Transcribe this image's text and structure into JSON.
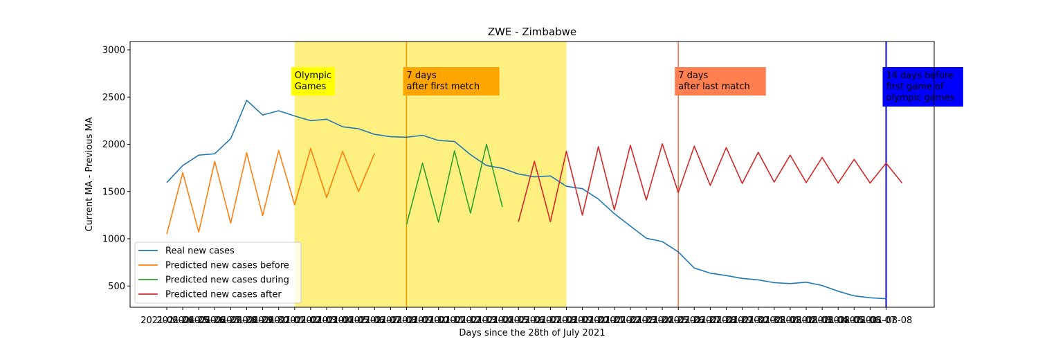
{
  "chart_data": {
    "type": "line",
    "title": "ZWE - Zimbabwe",
    "xlabel": "Days since the 28th of July 2021",
    "ylabel": "Current MA - Previous MA",
    "ylim": [
      270,
      3080
    ],
    "yticks": [
      500,
      1000,
      1500,
      2000,
      2500,
      3000
    ],
    "x_dates": [
      "2021-06-24",
      "2021-06-25",
      "2021-06-26",
      "2021-06-27",
      "2021-06-28",
      "2021-06-29",
      "2021-06-30",
      "2021-07-01",
      "2021-07-02",
      "2021-07-03",
      "2021-07-04",
      "2021-07-05",
      "2021-07-06",
      "2021-07-07",
      "2021-07-08",
      "2021-07-09",
      "2021-07-10",
      "2021-07-11",
      "2021-07-12",
      "2021-07-13",
      "2021-07-14",
      "2021-07-15",
      "2021-07-16",
      "2021-07-17",
      "2021-07-18",
      "2021-07-19",
      "2021-07-20",
      "2021-07-21",
      "2021-07-22",
      "2021-07-23",
      "2021-07-24",
      "2021-07-25",
      "2021-07-26",
      "2021-07-27",
      "2021-07-28",
      "2021-07-29",
      "2021-07-30",
      "2021-07-31",
      "2021-08-01",
      "2021-08-02",
      "2021-08-03",
      "2021-08-04",
      "2021-08-05",
      "2021-08-06",
      "2021-08-07",
      "2021-08-08"
    ],
    "x_tick_labels": [
      "2021-06-24",
      "2021-06-25",
      "2021-06-26",
      "2021-06-27",
      "2021-06-28",
      "2021-06-29",
      "2021-06-30",
      "2021-07-01",
      "2021-07-02",
      "2021-07-03",
      "2021-07-04",
      "2021-07-05",
      "2021-07-06",
      "2021-07-07",
      "2021-07-08",
      "2021-07-09",
      "2021-07-10",
      "2021-07-11",
      "2021-07-12",
      "2021-07-13",
      "2021-07-14",
      "2021-07-15",
      "2021-07-16",
      "2021-07-17",
      "2021-07-18",
      "2021-07-19",
      "2021-07-20",
      "2021-07-21",
      "2021-07-22",
      "2021-07-23",
      "2021-07-24",
      "2021-07-25",
      "2021-07-26",
      "2021-07-27",
      "2021-07-28",
      "2021-07-29",
      "2021-07-30",
      "2021-07-31",
      "2021-08-01",
      "2021-08-02",
      "2021-08-03",
      "2021-08-04",
      "2021-08-05",
      "2021-08-06",
      "2021-08-07",
      "2021-08-08"
    ],
    "shaded_region": {
      "x_start": "2021-07-02",
      "x_end": "2021-07-19",
      "color": "#fdef80"
    },
    "vlines": [
      {
        "x": "2021-07-09",
        "color": "#f59f00",
        "label": "7 days\nafter first metch",
        "box_color": "#ffa500",
        "text_color": "#000000"
      },
      {
        "x": "2021-07-26",
        "color": "#ee7c50",
        "label": "7 days\nafter last match",
        "box_color": "#ff7f50",
        "text_color": "#000000"
      },
      {
        "x": "2021-08-08",
        "color": "#0000cc",
        "label": "14 days before\nfirst game of\nolympic games",
        "box_color": "#0000ff",
        "text_color": "#ffffff"
      }
    ],
    "region_label": {
      "x": "2021-07-02",
      "text": "Olympic\nGames",
      "box_color": "#ffff00",
      "text_color": "#000000"
    },
    "series": [
      {
        "name": "Real new cases",
        "color": "#1f77b4",
        "x_start_index": 0,
        "values": [
          1595,
          1775,
          1885,
          1900,
          2060,
          2465,
          2310,
          2355,
          2300,
          2250,
          2265,
          2185,
          2165,
          2105,
          2080,
          2075,
          2095,
          2040,
          2030,
          1890,
          1775,
          1745,
          1685,
          1655,
          1665,
          1555,
          1530,
          1420,
          1265,
          1135,
          1005,
          970,
          860,
          690,
          635,
          610,
          580,
          565,
          535,
          525,
          540,
          505,
          445,
          395,
          375,
          365
        ]
      },
      {
        "name": "Predicted new cases before",
        "color": "#ff7f0e",
        "x_start_index": 0,
        "values": [
          1050,
          1700,
          1070,
          1820,
          1165,
          1910,
          1245,
          1935,
          1360,
          1955,
          1435,
          1925,
          1500,
          1905
        ]
      },
      {
        "name": "Predicted new cases during",
        "color": "#2ca02c",
        "x_start_index": 15,
        "values": [
          1150,
          1800,
          1175,
          1930,
          1270,
          2000,
          1335
        ]
      },
      {
        "name": "Predicted new cases after",
        "color": "#d62728",
        "x_start_index": 22,
        "values": [
          1180,
          1820,
          1180,
          1925,
          1250,
          1975,
          1305,
          1990,
          1410,
          2005,
          1490,
          1980,
          1565,
          1965,
          1585,
          1915,
          1600,
          1885,
          1595,
          1860,
          1590,
          1840,
          1590,
          1800,
          1590
        ]
      }
    ],
    "legend_position": "lower-left"
  }
}
